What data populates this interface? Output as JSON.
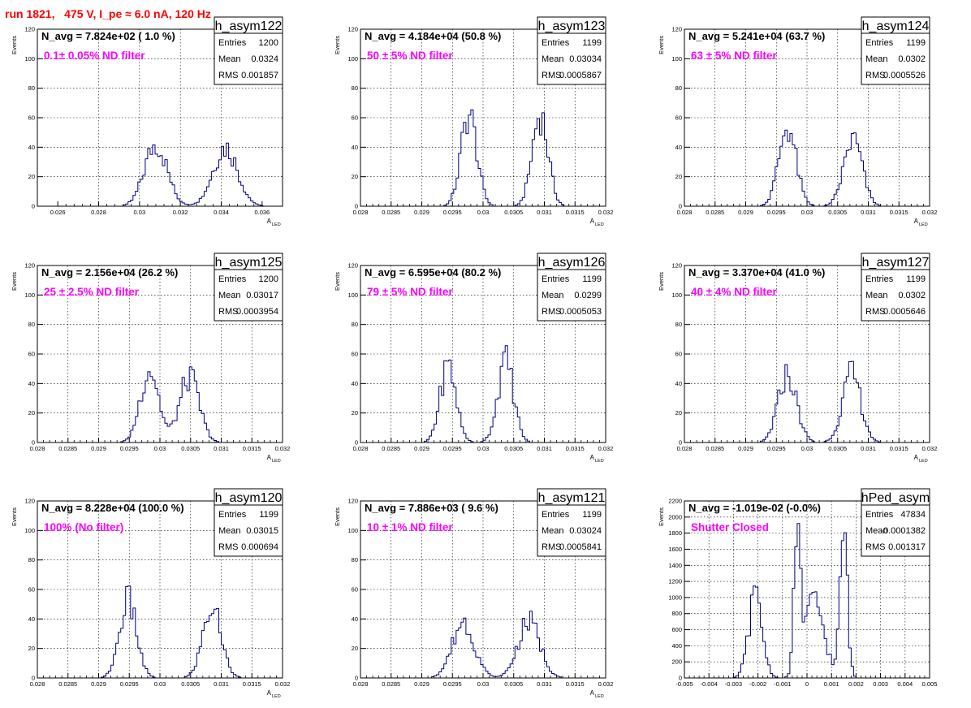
{
  "page": {
    "title": "run 1821,   475 V, I_pe ≈ 6.0 nA, 120 Hz"
  },
  "colors": {
    "title": "#ff0000",
    "annotation": "#ff00ff",
    "histogram": "#000080",
    "grid": "#000000"
  },
  "stats_labels": {
    "entries": "Entries",
    "mean": "Mean",
    "rms": "RMS"
  },
  "chart_data": [
    {
      "type": "histogram",
      "name": "h_asym122",
      "header": "N_avg = 7.824e+02 ( 1.0 %)",
      "annotation": "0.1± 0.05% ND filter",
      "stats": {
        "entries": "1200",
        "mean": "0.0324",
        "rms": "0.001857"
      },
      "ylabel": "Events",
      "xlabel": "A",
      "xlabel_sub": "LED",
      "xlim": [
        0.025,
        0.037
      ],
      "ylim": [
        0,
        120
      ],
      "xticks": [
        0.026,
        0.028,
        0.03,
        0.032,
        0.034,
        0.036
      ],
      "xtick_labels": [
        "0.026",
        "0.028",
        "0.03",
        "0.032",
        "0.034",
        "0.036"
      ],
      "yticks": [
        0,
        20,
        40,
        60,
        80,
        100,
        120
      ],
      "ytick_labels": [
        "0",
        "20",
        "40",
        "60",
        "80",
        "100",
        "120"
      ],
      "peaks": [
        {
          "center": 0.0308,
          "sigma": 0.00055,
          "height": 42
        },
        {
          "center": 0.0342,
          "sigma": 0.0006,
          "height": 40
        }
      ]
    },
    {
      "type": "histogram",
      "name": "h_asym123",
      "header": "N_avg = 4.184e+04 (50.8 %)",
      "annotation": "50 ± 5% ND filter",
      "stats": {
        "entries": "1199",
        "mean": "0.03034",
        "rms": "0.0005867"
      },
      "ylabel": "Events",
      "xlabel": "A",
      "xlabel_sub": "LED",
      "xlim": [
        0.028,
        0.032
      ],
      "ylim": [
        0,
        120
      ],
      "xticks": [
        0.028,
        0.0285,
        0.029,
        0.0295,
        0.03,
        0.0305,
        0.031,
        0.0315,
        0.032
      ],
      "xtick_labels": [
        "0.028",
        "0.0285",
        "0.029",
        "0.0295",
        "0.03",
        "0.0305",
        "0.031",
        "0.0315",
        "0.032"
      ],
      "yticks": [
        0,
        20,
        40,
        60,
        80,
        100,
        120
      ],
      "ytick_labels": [
        "0",
        "20",
        "40",
        "60",
        "80",
        "100",
        "120"
      ],
      "peaks": [
        {
          "center": 0.02977,
          "sigma": 0.00013,
          "height": 62
        },
        {
          "center": 0.03093,
          "sigma": 0.00013,
          "height": 62
        }
      ]
    },
    {
      "type": "histogram",
      "name": "h_asym124",
      "header": "N_avg = 5.241e+04 (63.7 %)",
      "annotation": "63 ± 5% ND filter",
      "stats": {
        "entries": "1199",
        "mean": "0.0302",
        "rms": "0.0005526"
      },
      "ylabel": "Events",
      "xlabel": "A",
      "xlabel_sub": "LED",
      "xlim": [
        0.028,
        0.032
      ],
      "ylim": [
        0,
        120
      ],
      "xticks": [
        0.028,
        0.0285,
        0.029,
        0.0295,
        0.03,
        0.0305,
        0.031,
        0.0315,
        0.032
      ],
      "xtick_labels": [
        "0.028",
        "0.0285",
        "0.029",
        "0.0295",
        "0.03",
        "0.0305",
        "0.031",
        "0.0315",
        "0.032"
      ],
      "yticks": [
        0,
        20,
        40,
        60,
        80,
        100,
        120
      ],
      "ytick_labels": [
        "0",
        "20",
        "40",
        "60",
        "80",
        "100",
        "120"
      ],
      "peaks": [
        {
          "center": 0.02968,
          "sigma": 0.00014,
          "height": 54
        },
        {
          "center": 0.03075,
          "sigma": 0.00015,
          "height": 45
        }
      ]
    },
    {
      "type": "histogram",
      "name": "h_asym125",
      "header": "N_avg = 2.156e+04 (26.2 %)",
      "annotation": "25 ± 2.5% ND filter",
      "stats": {
        "entries": "1200",
        "mean": "0.03017",
        "rms": "0.0003954"
      },
      "ylabel": "Events",
      "xlabel": "A",
      "xlabel_sub": "LED",
      "xlim": [
        0.028,
        0.032
      ],
      "ylim": [
        0,
        120
      ],
      "xticks": [
        0.028,
        0.0285,
        0.029,
        0.0295,
        0.03,
        0.0305,
        0.031,
        0.0315,
        0.032
      ],
      "xtick_labels": [
        "0.028",
        "0.0285",
        "0.029",
        "0.0295",
        "0.03",
        "0.0305",
        "0.031",
        "0.0315",
        "0.032"
      ],
      "yticks": [
        0,
        20,
        40,
        60,
        80,
        100,
        120
      ],
      "ytick_labels": [
        "0",
        "20",
        "40",
        "60",
        "80",
        "100",
        "120"
      ],
      "peaks": [
        {
          "center": 0.02983,
          "sigma": 0.00015,
          "height": 50
        },
        {
          "center": 0.03048,
          "sigma": 0.00016,
          "height": 44
        }
      ]
    },
    {
      "type": "histogram",
      "name": "h_asym126",
      "header": "N_avg = 6.595e+04 (80.2 %)",
      "annotation": "79 ± 5% ND filter",
      "stats": {
        "entries": "1199",
        "mean": "0.0299",
        "rms": "0.0005053"
      },
      "ylabel": "Events",
      "xlabel": "A",
      "xlabel_sub": "LED",
      "xlim": [
        0.028,
        0.032
      ],
      "ylim": [
        0,
        120
      ],
      "xticks": [
        0.028,
        0.0285,
        0.029,
        0.0295,
        0.03,
        0.0305,
        0.031,
        0.0315,
        0.032
      ],
      "xtick_labels": [
        "0.028",
        "0.0285",
        "0.029",
        "0.0295",
        "0.03",
        "0.0305",
        "0.031",
        "0.0315",
        "0.032"
      ],
      "yticks": [
        0,
        20,
        40,
        60,
        80,
        100,
        120
      ],
      "ytick_labels": [
        "0",
        "20",
        "40",
        "60",
        "80",
        "100",
        "120"
      ],
      "peaks": [
        {
          "center": 0.02943,
          "sigma": 0.00013,
          "height": 52
        },
        {
          "center": 0.03037,
          "sigma": 0.00013,
          "height": 55
        }
      ]
    },
    {
      "type": "histogram",
      "name": "h_asym127",
      "header": "N_avg = 3.370e+04 (41.0 %)",
      "annotation": "40 ± 4% ND filter",
      "stats": {
        "entries": "1199",
        "mean": "0.0302",
        "rms": "0.0005646"
      },
      "ylabel": "Events",
      "xlabel": "A",
      "xlabel_sub": "LED",
      "xlim": [
        0.028,
        0.032
      ],
      "ylim": [
        0,
        120
      ],
      "xticks": [
        0.028,
        0.0285,
        0.029,
        0.0295,
        0.03,
        0.0305,
        0.031,
        0.0315,
        0.032
      ],
      "xtick_labels": [
        "0.028",
        "0.0285",
        "0.029",
        "0.0295",
        "0.03",
        "0.0305",
        "0.031",
        "0.0315",
        "0.032"
      ],
      "yticks": [
        0,
        20,
        40,
        60,
        80,
        100,
        120
      ],
      "ytick_labels": [
        "0",
        "20",
        "40",
        "60",
        "80",
        "100",
        "120"
      ],
      "peaks": [
        {
          "center": 0.02968,
          "sigma": 0.00015,
          "height": 46
        },
        {
          "center": 0.03073,
          "sigma": 0.00015,
          "height": 46
        }
      ]
    },
    {
      "type": "histogram",
      "name": "h_asym120",
      "header": "N_avg = 8.228e+04 (100.0 %)",
      "annotation": "100% (No filter)",
      "stats": {
        "entries": "1199",
        "mean": "0.03015",
        "rms": "0.000694"
      },
      "ylabel": "Events",
      "xlabel": "A",
      "xlabel_sub": "LED",
      "xlim": [
        0.028,
        0.032
      ],
      "ylim": [
        0,
        120
      ],
      "xticks": [
        0.028,
        0.0285,
        0.029,
        0.0295,
        0.03,
        0.0305,
        0.031,
        0.0315,
        0.032
      ],
      "xtick_labels": [
        "0.028",
        "0.0285",
        "0.029",
        "0.0295",
        "0.03",
        "0.0305",
        "0.031",
        "0.0315",
        "0.032"
      ],
      "yticks": [
        0,
        20,
        40,
        60,
        80,
        100,
        120
      ],
      "ytick_labels": [
        "0",
        "20",
        "40",
        "60",
        "80",
        "100",
        "120"
      ],
      "peaks": [
        {
          "center": 0.02948,
          "sigma": 0.00014,
          "height": 52
        },
        {
          "center": 0.03085,
          "sigma": 0.00015,
          "height": 48
        }
      ]
    },
    {
      "type": "histogram",
      "name": "h_asym121",
      "header": "N_avg = 7.886e+03 ( 9.6 %)",
      "annotation": "10 ± 1% ND filter",
      "stats": {
        "entries": "1199",
        "mean": "0.03024",
        "rms": "0.0005841"
      },
      "ylabel": "Events",
      "xlabel": "A",
      "xlabel_sub": "LED",
      "xlim": [
        0.028,
        0.032
      ],
      "ylim": [
        0,
        120
      ],
      "xticks": [
        0.028,
        0.0285,
        0.029,
        0.0295,
        0.03,
        0.0305,
        0.031,
        0.0315,
        0.032
      ],
      "xtick_labels": [
        "0.028",
        "0.0285",
        "0.029",
        "0.0295",
        "0.03",
        "0.0305",
        "0.031",
        "0.0315",
        "0.032"
      ],
      "yticks": [
        0,
        20,
        40,
        60,
        80,
        100,
        120
      ],
      "ytick_labels": [
        "0",
        "20",
        "40",
        "60",
        "80",
        "100",
        "120"
      ],
      "peaks": [
        {
          "center": 0.02968,
          "sigma": 0.00018,
          "height": 38
        },
        {
          "center": 0.03075,
          "sigma": 0.00018,
          "height": 38
        }
      ]
    },
    {
      "type": "histogram",
      "name": "hPed_asym",
      "header": "N_avg = -1.019e-02 (-0.0%)",
      "annotation": "Shutter Closed",
      "stats": {
        "entries": "47834",
        "mean": "-0.0001382",
        "rms": "0.001317"
      },
      "ylabel": "Events",
      "xlabel": "",
      "xlabel_sub": "",
      "xlim": [
        -0.005,
        0.005
      ],
      "ylim": [
        0,
        2200
      ],
      "xticks": [
        -0.005,
        -0.004,
        -0.003,
        -0.002,
        -0.001,
        0,
        0.001,
        0.002,
        0.003,
        0.004,
        0.005
      ],
      "xtick_labels": [
        "-0.005",
        "-0.004",
        "-0.003",
        "-0.002",
        "-0.001",
        "0",
        "0.001",
        "0.002",
        "0.003",
        "0.004",
        "0.005"
      ],
      "yticks": [
        0,
        200,
        400,
        600,
        800,
        1000,
        1200,
        1400,
        1600,
        1800,
        2000,
        2200
      ],
      "ytick_labels": [
        "0",
        "200",
        "400",
        "600",
        "800",
        "1000",
        "1200",
        "1400",
        "1600",
        "1800",
        "2000",
        "2200"
      ],
      "peaks": [
        {
          "center": -0.0021,
          "sigma": 0.00028,
          "height": 1000
        },
        {
          "center": -0.0004,
          "sigma": 0.00012,
          "height": 1900
        },
        {
          "center": 0.0003,
          "sigma": 0.0004,
          "height": 950
        },
        {
          "center": 0.0015,
          "sigma": 0.00015,
          "height": 1850
        }
      ]
    }
  ]
}
